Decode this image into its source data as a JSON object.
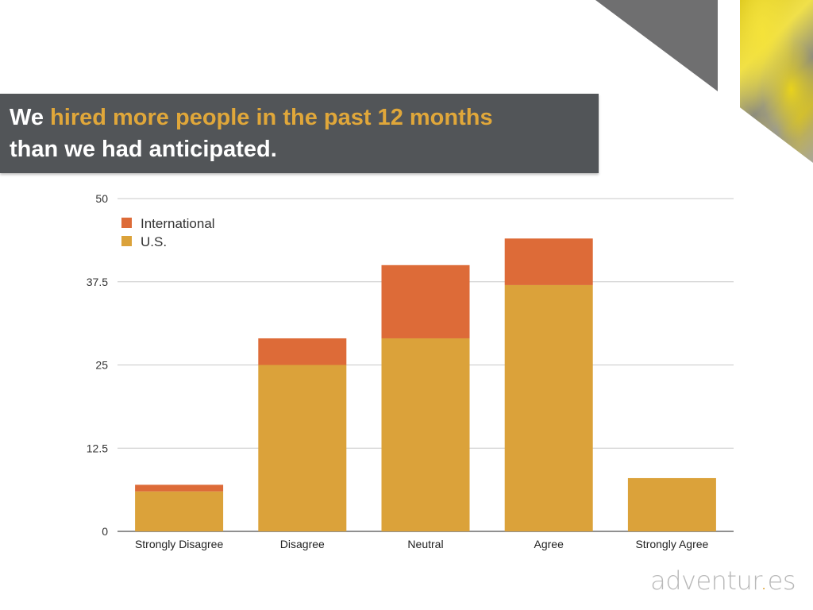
{
  "title": {
    "part1": "We ",
    "highlight": "hired more people in the past 12 months",
    "line2": "than we had anticipated."
  },
  "logo": {
    "main": "adventur",
    "dot": ".",
    "suffix": "es"
  },
  "colors": {
    "international": "#dd6b38",
    "us": "#dba23a",
    "title_band": "#525558",
    "highlight": "#e0a73a"
  },
  "chart_data": {
    "type": "bar",
    "stacked": true,
    "categories": [
      "Strongly Disagree",
      "Disagree",
      "Neutral",
      "Agree",
      "Strongly Agree"
    ],
    "series": [
      {
        "name": "U.S.",
        "values": [
          6,
          25,
          29,
          37,
          8
        ]
      },
      {
        "name": "International",
        "values": [
          1,
          4,
          11,
          7,
          0
        ]
      }
    ],
    "ylim": [
      0,
      50
    ],
    "yticks": [
      0,
      12.5,
      25,
      37.5,
      50
    ],
    "ytick_labels": [
      "0",
      "12.5",
      "25",
      "37.5",
      "50"
    ],
    "grid": true,
    "legend": {
      "placement": "top-left",
      "entries": [
        "International",
        "U.S."
      ]
    }
  }
}
